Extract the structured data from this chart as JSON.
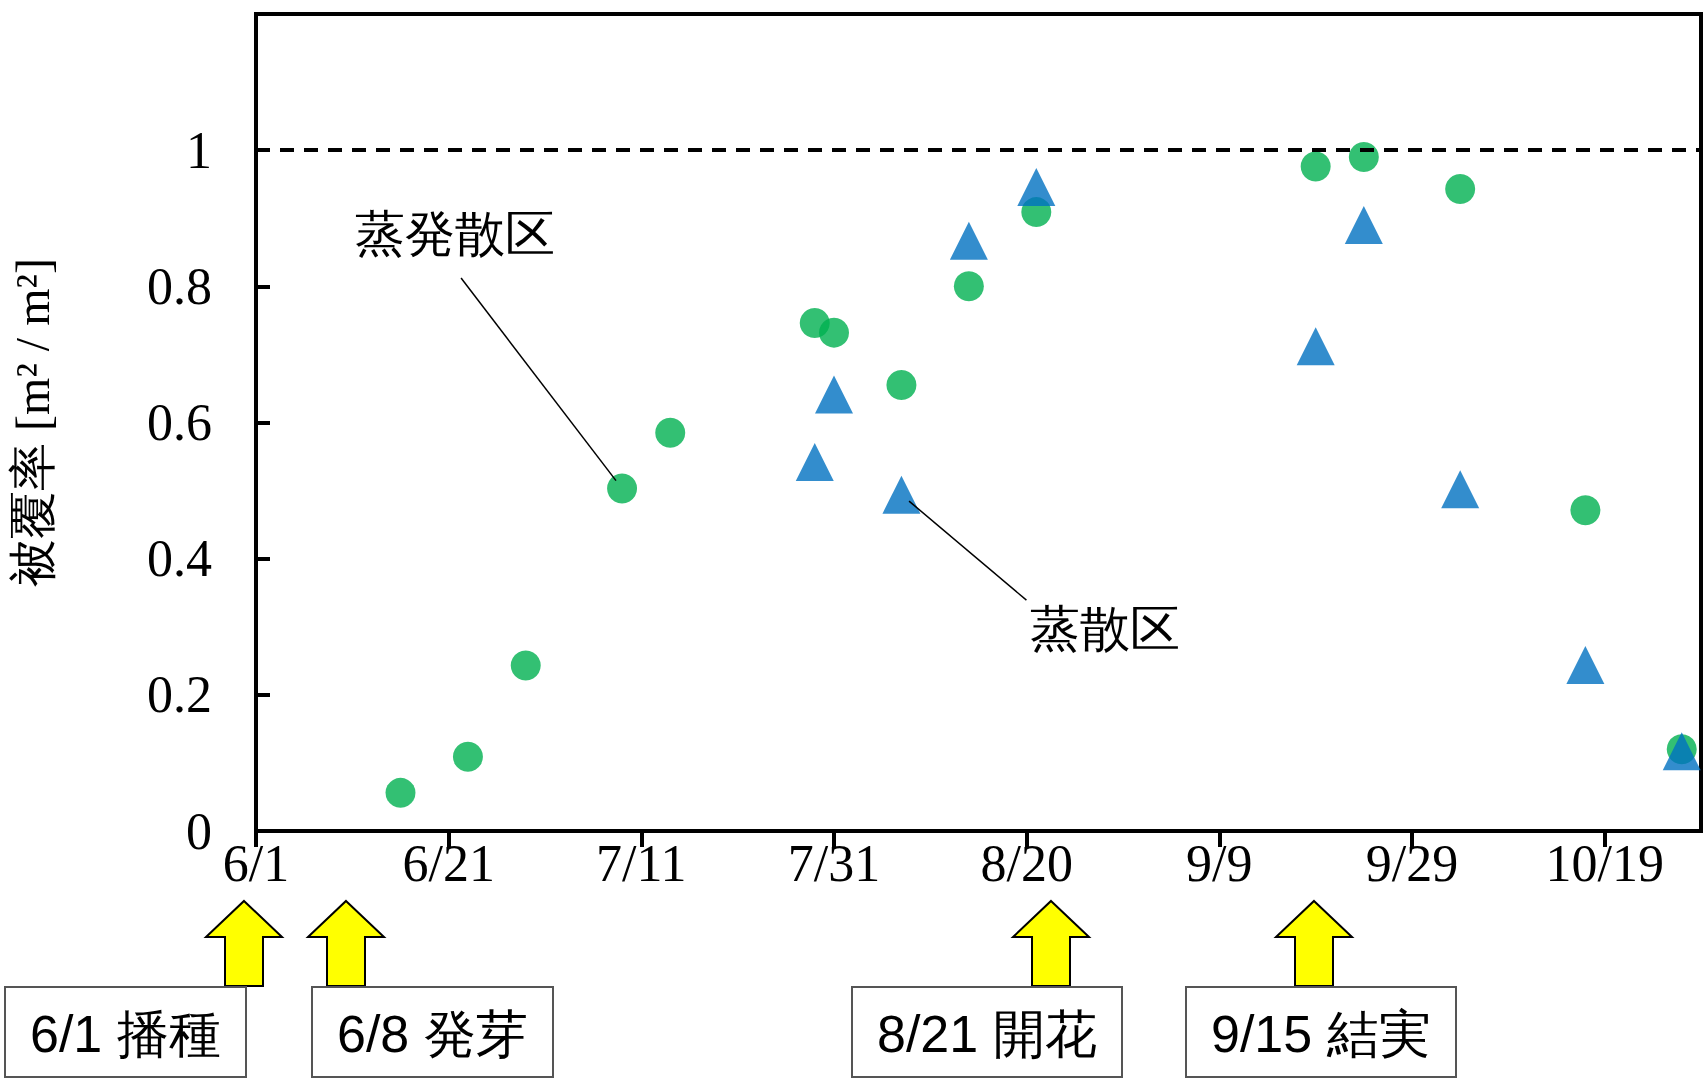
{
  "chart_data": {
    "type": "scatter",
    "ylabel": "被覆率 [m² / m²]",
    "xlim": [
      "--06-01",
      "--10-29"
    ],
    "xticks": [
      {
        "value": "--06-01",
        "label": "6/1"
      },
      {
        "value": "--06-21",
        "label": "6/21"
      },
      {
        "value": "--07-11",
        "label": "7/11"
      },
      {
        "value": "--07-31",
        "label": "7/31"
      },
      {
        "value": "--08-20",
        "label": "8/20"
      },
      {
        "value": "--09-09",
        "label": "9/9"
      },
      {
        "value": "--09-29",
        "label": "9/29"
      },
      {
        "value": "--10-19",
        "label": "10/19"
      }
    ],
    "ylim": [
      0,
      1.2
    ],
    "yticks": [
      0,
      0.2,
      0.4,
      0.6,
      0.8,
      1
    ],
    "series": [
      {
        "name": "蒸発散区",
        "color": "#00b050",
        "marker": "circle",
        "x": [
          "--06-16",
          "--06-23",
          "--06-29",
          "--07-09",
          "--07-14",
          "--07-29",
          "--07-31",
          "--08-07",
          "--08-14",
          "--08-21",
          "--09-19",
          "--09-24",
          "--10-04",
          "--10-17",
          "--10-27"
        ],
        "values": [
          0.056,
          0.109,
          0.243,
          0.503,
          0.585,
          0.746,
          0.732,
          0.655,
          0.8,
          0.909,
          0.976,
          0.99,
          0.943,
          0.471,
          0.12
        ]
      },
      {
        "name": "蒸散区",
        "color": "#0070c0",
        "marker": "triangle",
        "x": [
          "--07-29",
          "--07-31",
          "--08-07",
          "--08-14",
          "--08-21",
          "--09-19",
          "--09-24",
          "--10-04",
          "--10-17",
          "--10-27"
        ],
        "values": [
          0.542,
          0.641,
          0.494,
          0.867,
          0.946,
          0.712,
          0.89,
          0.502,
          0.244,
          0.117
        ]
      }
    ],
    "ref_lines": [
      {
        "axis": "y",
        "value": 1,
        "color": "#000000",
        "line_style": "dashed"
      }
    ],
    "annotations": [
      "6/1 播種",
      "6/8 発芽",
      "8/21 開花",
      "9/15 結実"
    ]
  }
}
